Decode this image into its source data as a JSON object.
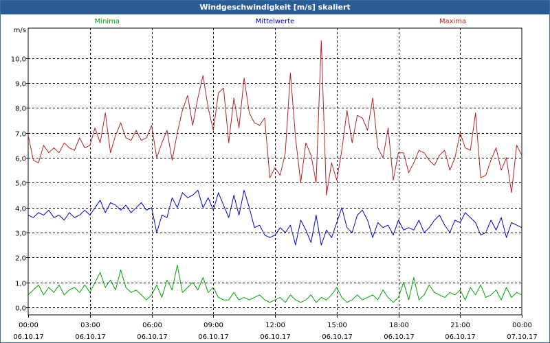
{
  "title": "Windgeschwindigkeit [m/s] skaliert",
  "chart_data": {
    "type": "line",
    "title": "Windgeschwindigkeit [m/s] skaliert",
    "ylabel": "m/s",
    "xlabel": "",
    "ylim": [
      -0.3,
      11.2
    ],
    "xlim": [
      0,
      24
    ],
    "grid": true,
    "y_ticks": [
      {
        "value": 0,
        "label": "0,0"
      },
      {
        "value": 1,
        "label": "1,0"
      },
      {
        "value": 2,
        "label": "2,0"
      },
      {
        "value": 3,
        "label": "3,0"
      },
      {
        "value": 4,
        "label": "4,0"
      },
      {
        "value": 5,
        "label": "5,0"
      },
      {
        "value": 6,
        "label": "6,0"
      },
      {
        "value": 7,
        "label": "7,0"
      },
      {
        "value": 8,
        "label": "8,0"
      },
      {
        "value": 9,
        "label": "9,0"
      },
      {
        "value": 10,
        "label": "10,0"
      }
    ],
    "x_ticks": [
      {
        "value": 0,
        "time": "00:00",
        "date": "06.10.17"
      },
      {
        "value": 3,
        "time": "03:00",
        "date": "06.10.17"
      },
      {
        "value": 6,
        "time": "06:00",
        "date": "06.10.17"
      },
      {
        "value": 9,
        "time": "09:00",
        "date": "06.10.17"
      },
      {
        "value": 12,
        "time": "12:00",
        "date": "06.10.17"
      },
      {
        "value": 15,
        "time": "15:00",
        "date": "06.10.17"
      },
      {
        "value": 18,
        "time": "18:00",
        "date": "06.10.17"
      },
      {
        "value": 21,
        "time": "21:00",
        "date": "06.10.17"
      },
      {
        "value": 24,
        "time": "00:00",
        "date": "07.10.17"
      }
    ],
    "series": [
      {
        "name": "Maxima",
        "color": "#b22222",
        "x": [
          0.0,
          0.25,
          0.5,
          0.75,
          1.0,
          1.25,
          1.5,
          1.75,
          2.0,
          2.25,
          2.5,
          2.75,
          3.0,
          3.25,
          3.5,
          3.75,
          4.0,
          4.25,
          4.5,
          4.75,
          5.0,
          5.25,
          5.5,
          5.75,
          6.0,
          6.25,
          6.5,
          6.75,
          7.0,
          7.25,
          7.5,
          7.75,
          8.0,
          8.25,
          8.5,
          8.75,
          9.0,
          9.25,
          9.5,
          9.75,
          10.0,
          10.25,
          10.5,
          10.75,
          11.0,
          11.25,
          11.5,
          11.75,
          12.0,
          12.25,
          12.5,
          12.75,
          13.0,
          13.25,
          13.5,
          13.75,
          14.0,
          14.25,
          14.5,
          14.75,
          15.0,
          15.25,
          15.5,
          15.75,
          16.0,
          16.25,
          16.5,
          16.75,
          17.0,
          17.25,
          17.5,
          17.75,
          18.0,
          18.25,
          18.5,
          18.75,
          19.0,
          19.25,
          19.5,
          19.75,
          20.0,
          20.25,
          20.5,
          20.75,
          21.0,
          21.25,
          21.5,
          21.75,
          22.0,
          22.25,
          22.5,
          22.75,
          23.0,
          23.25,
          23.5,
          23.75,
          24.0
        ],
        "values": [
          6.9,
          5.9,
          5.8,
          6.5,
          6.2,
          6.4,
          6.2,
          6.6,
          6.4,
          6.3,
          6.8,
          6.4,
          6.5,
          7.2,
          6.6,
          7.8,
          6.2,
          6.9,
          7.4,
          6.8,
          6.7,
          7.1,
          6.7,
          6.8,
          7.3,
          6.0,
          6.6,
          7.1,
          5.9,
          7.0,
          7.9,
          8.5,
          7.3,
          8.4,
          9.3,
          8.0,
          7.1,
          8.6,
          8.8,
          6.6,
          8.4,
          7.2,
          9.2,
          7.8,
          7.4,
          7.3,
          7.6,
          5.2,
          5.6,
          5.3,
          6.2,
          9.4,
          6.8,
          5.0,
          6.6,
          6.1,
          5.0,
          10.7,
          4.5,
          5.8,
          5.1,
          6.3,
          7.9,
          6.6,
          7.7,
          7.6,
          7.1,
          8.4,
          6.4,
          6.0,
          7.2,
          5.1,
          6.2,
          6.2,
          5.4,
          5.8,
          6.3,
          6.2,
          5.9,
          5.7,
          6.1,
          6.3,
          5.5,
          6.0,
          7.0,
          6.4,
          6.3,
          7.8,
          5.2,
          5.3,
          5.9,
          6.4,
          5.5,
          6.0,
          4.6,
          6.5,
          6.1
        ]
      },
      {
        "name": "Mittelwerte",
        "color": "#0000c0",
        "x": [
          0.0,
          0.25,
          0.5,
          0.75,
          1.0,
          1.25,
          1.5,
          1.75,
          2.0,
          2.25,
          2.5,
          2.75,
          3.0,
          3.25,
          3.5,
          3.75,
          4.0,
          4.25,
          4.5,
          4.75,
          5.0,
          5.25,
          5.5,
          5.75,
          6.0,
          6.25,
          6.5,
          6.75,
          7.0,
          7.25,
          7.5,
          7.75,
          8.0,
          8.25,
          8.5,
          8.75,
          9.0,
          9.25,
          9.5,
          9.75,
          10.0,
          10.25,
          10.5,
          10.75,
          11.0,
          11.25,
          11.5,
          11.75,
          12.0,
          12.25,
          12.5,
          12.75,
          13.0,
          13.25,
          13.5,
          13.75,
          14.0,
          14.25,
          14.5,
          14.75,
          15.0,
          15.25,
          15.5,
          15.75,
          16.0,
          16.25,
          16.5,
          16.75,
          17.0,
          17.25,
          17.5,
          17.75,
          18.0,
          18.25,
          18.5,
          18.75,
          19.0,
          19.25,
          19.5,
          19.75,
          20.0,
          20.25,
          20.5,
          20.75,
          21.0,
          21.25,
          21.5,
          21.75,
          22.0,
          22.25,
          22.5,
          22.75,
          23.0,
          23.25,
          23.5,
          23.75,
          24.0
        ],
        "values": [
          3.7,
          3.6,
          3.8,
          3.7,
          3.9,
          3.6,
          3.7,
          3.5,
          3.8,
          3.6,
          3.7,
          3.9,
          3.7,
          4.0,
          4.3,
          3.8,
          4.2,
          4.1,
          3.9,
          4.1,
          3.8,
          4.0,
          4.2,
          3.9,
          4.0,
          3.0,
          3.7,
          3.6,
          4.4,
          4.0,
          4.6,
          4.4,
          4.5,
          4.7,
          4.0,
          4.4,
          3.9,
          4.6,
          4.1,
          3.6,
          4.5,
          3.7,
          4.7,
          4.0,
          3.2,
          3.3,
          2.9,
          2.8,
          2.9,
          3.2,
          3.0,
          3.3,
          2.5,
          3.5,
          3.1,
          2.6,
          3.7,
          2.5,
          3.1,
          2.8,
          3.4,
          4.0,
          3.2,
          3.0,
          3.7,
          3.9,
          3.5,
          2.8,
          3.4,
          3.2,
          3.3,
          2.9,
          3.5,
          3.1,
          3.2,
          3.1,
          3.5,
          3.0,
          3.2,
          3.5,
          3.7,
          3.3,
          3.0,
          3.5,
          3.4,
          3.8,
          3.6,
          3.4,
          2.9,
          3.0,
          3.5,
          3.1,
          3.6,
          2.8,
          3.4,
          3.3,
          3.2
        ]
      },
      {
        "name": "Minima",
        "color": "#00a000",
        "x": [
          0.0,
          0.25,
          0.5,
          0.75,
          1.0,
          1.25,
          1.5,
          1.75,
          2.0,
          2.25,
          2.5,
          2.75,
          3.0,
          3.25,
          3.5,
          3.75,
          4.0,
          4.25,
          4.5,
          4.75,
          5.0,
          5.25,
          5.5,
          5.75,
          6.0,
          6.25,
          6.5,
          6.75,
          7.0,
          7.25,
          7.5,
          7.75,
          8.0,
          8.25,
          8.5,
          8.75,
          9.0,
          9.25,
          9.5,
          9.75,
          10.0,
          10.25,
          10.5,
          10.75,
          11.0,
          11.25,
          11.5,
          11.75,
          12.0,
          12.25,
          12.5,
          12.75,
          13.0,
          13.25,
          13.5,
          13.75,
          14.0,
          14.25,
          14.5,
          14.75,
          15.0,
          15.25,
          15.5,
          15.75,
          16.0,
          16.25,
          16.5,
          16.75,
          17.0,
          17.25,
          17.5,
          17.75,
          18.0,
          18.25,
          18.5,
          18.75,
          19.0,
          19.25,
          19.5,
          19.75,
          20.0,
          20.25,
          20.5,
          20.75,
          21.0,
          21.25,
          21.5,
          21.75,
          22.0,
          22.25,
          22.5,
          22.75,
          23.0,
          23.25,
          23.5,
          23.75,
          24.0
        ],
        "values": [
          0.5,
          0.7,
          0.9,
          0.5,
          0.8,
          0.6,
          0.9,
          0.5,
          0.7,
          0.8,
          0.6,
          0.9,
          0.6,
          1.0,
          1.4,
          0.8,
          1.1,
          0.7,
          1.5,
          0.8,
          0.6,
          0.7,
          0.5,
          0.3,
          0.5,
          0.9,
          0.4,
          1.1,
          0.7,
          1.7,
          0.6,
          0.8,
          1.0,
          0.7,
          1.2,
          0.6,
          0.8,
          0.4,
          0.3,
          0.3,
          0.6,
          0.3,
          0.4,
          0.3,
          0.4,
          0.5,
          0.3,
          0.2,
          0.3,
          0.4,
          0.2,
          0.5,
          0.3,
          0.2,
          0.3,
          0.5,
          0.2,
          0.4,
          0.3,
          0.5,
          0.8,
          0.4,
          0.2,
          0.3,
          0.5,
          0.3,
          0.4,
          0.5,
          0.3,
          0.7,
          0.4,
          0.2,
          0.4,
          1.0,
          0.3,
          1.2,
          0.3,
          0.5,
          0.9,
          0.6,
          0.5,
          0.4,
          0.6,
          0.5,
          0.7,
          0.3,
          0.8,
          0.5,
          0.9,
          0.4,
          0.5,
          0.7,
          0.3,
          0.8,
          0.4,
          0.6,
          0.5
        ]
      }
    ]
  }
}
